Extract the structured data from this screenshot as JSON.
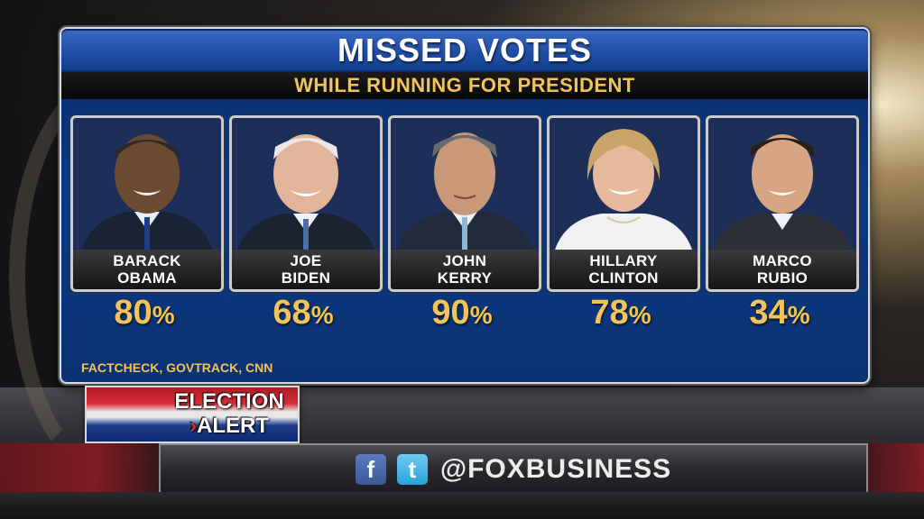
{
  "chart_data": {
    "type": "bar",
    "title": "MISSED VOTES",
    "subtitle": "WHILE RUNNING FOR PRESIDENT",
    "categories": [
      {
        "first": "BARACK",
        "last": "OBAMA"
      },
      {
        "first": "JOE",
        "last": "BIDEN"
      },
      {
        "first": "JOHN",
        "last": "KERRY"
      },
      {
        "first": "HILLARY",
        "last": "CLINTON"
      },
      {
        "first": "MARCO",
        "last": "RUBIO"
      }
    ],
    "values": [
      80,
      68,
      90,
      78,
      34
    ],
    "unit": "%",
    "source": "FACTCHECK, GOVTRACK, CNN"
  },
  "overlay": {
    "alert_line1": "ELECTION",
    "alert_line2": "ALERT",
    "alert_chevron": "›",
    "facebook_icon_glyph": "f",
    "twitter_icon_glyph": "t",
    "handle": "@FOXBUSINESS"
  },
  "colors": {
    "accent_gold": "#f3c457",
    "panel_blue": "#0a3a86",
    "facebook_blue": "#3b5998",
    "twitter_blue": "#2aa3d8",
    "alert_red": "#d62e36"
  },
  "icons": [
    "facebook-icon",
    "twitter-icon"
  ]
}
